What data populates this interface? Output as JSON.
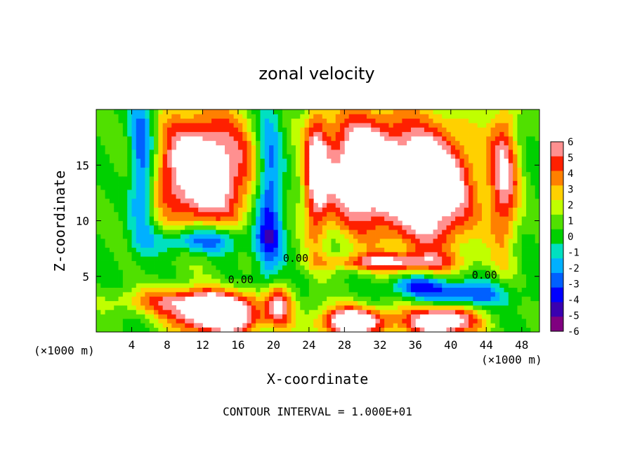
{
  "chart_data": {
    "type": "heatmap",
    "title": "zonal velocity",
    "xlabel": "X-coordinate",
    "ylabel": "Z-coordinate",
    "x_units_left": "(×1000 m)",
    "x_units_right": "(×1000 m)",
    "footer": "CONTOUR INTERVAL = 1.000E+01",
    "xlim": [
      0,
      50
    ],
    "ylim": [
      0,
      20
    ],
    "x_ticks": [
      4,
      8,
      12,
      16,
      20,
      24,
      28,
      32,
      36,
      40,
      44,
      48
    ],
    "y_ticks": [
      5,
      10,
      15
    ],
    "colorbar": {
      "min": -6,
      "max": 6,
      "ticks": [
        6,
        5,
        4,
        3,
        2,
        1,
        0,
        -1,
        -2,
        -3,
        -4,
        -5,
        -6
      ],
      "colors": [
        "#800080",
        "#3a00b0",
        "#0000ff",
        "#0060ff",
        "#00b0ff",
        "#00e0c0",
        "#00d000",
        "#50e000",
        "#c0ff00",
        "#ffd000",
        "#ff8000",
        "#ff2000",
        "#ff9090"
      ]
    },
    "contour_labels": [
      {
        "text": "0.00",
        "x": 22.5,
        "y": 6.3
      },
      {
        "text": "0.00",
        "x": 16.3,
        "y": 4.4
      },
      {
        "text": "0.00",
        "x": 43.8,
        "y": 4.8
      }
    ],
    "features": [
      {
        "desc": "white-left",
        "cx": 12,
        "cz": 14.5,
        "rx": 6,
        "rz": 5.5,
        "v": 8
      },
      {
        "desc": "white-center",
        "cx": 30,
        "cz": 14.5,
        "rx": 5,
        "rz": 5.5,
        "v": 8
      },
      {
        "desc": "white-right",
        "cx": 38,
        "cz": 13,
        "rx": 5,
        "rz": 6,
        "v": 8
      },
      {
        "desc": "white-bottom-left",
        "cx": 14,
        "cz": 1.2,
        "rx": 5,
        "rz": 1.6,
        "v": 8
      },
      {
        "desc": "white-bottom-mid",
        "cx": 29,
        "cz": 0.9,
        "rx": 4,
        "rz": 1.4,
        "v": 8
      },
      {
        "desc": "white-bottom-right",
        "cx": 39,
        "cz": 1.0,
        "rx": 4,
        "rz": 1.5,
        "v": 8
      },
      {
        "desc": "low-jet-left",
        "cx": 11,
        "cz": 2.8,
        "rx": 8,
        "rz": 1.3,
        "v": 5
      },
      {
        "desc": "low-jet-mid",
        "cx": 20.5,
        "cz": 2.4,
        "rx": 1.5,
        "rz": 2.3,
        "v": 4.5
      },
      {
        "desc": "riser-24",
        "cx": 24.8,
        "cz": 14,
        "rx": 1.3,
        "rz": 6.5,
        "v": 4.8
      },
      {
        "desc": "right-column",
        "cx": 46,
        "cz": 14,
        "rx": 1.7,
        "rz": 7,
        "v": 5.2
      },
      {
        "desc": "mid-shelf",
        "cx": 33,
        "cz": 6.3,
        "rx": 7,
        "rz": 0.8,
        "v": 4.6
      },
      {
        "desc": "blue-left-col",
        "cx": 5.2,
        "cz": 15,
        "rx": 1.5,
        "rz": 6,
        "v": -5.2
      },
      {
        "desc": "blue-diagonal",
        "cx": 12,
        "cz": 8.3,
        "rx": 5,
        "rz": 1.3,
        "v": -4.8
      },
      {
        "desc": "blue-center-col",
        "cx": 19.5,
        "cz": 12,
        "rx": 1.6,
        "rz": 8,
        "v": -5
      },
      {
        "desc": "blue-right-low",
        "cx": 41,
        "cz": 3.4,
        "rx": 5,
        "rz": 1.2,
        "v": -4.5
      },
      {
        "desc": "blue-right-mid",
        "cx": 36,
        "cz": 4.2,
        "rx": 3,
        "rz": 0.9,
        "v": -3.5
      }
    ]
  }
}
